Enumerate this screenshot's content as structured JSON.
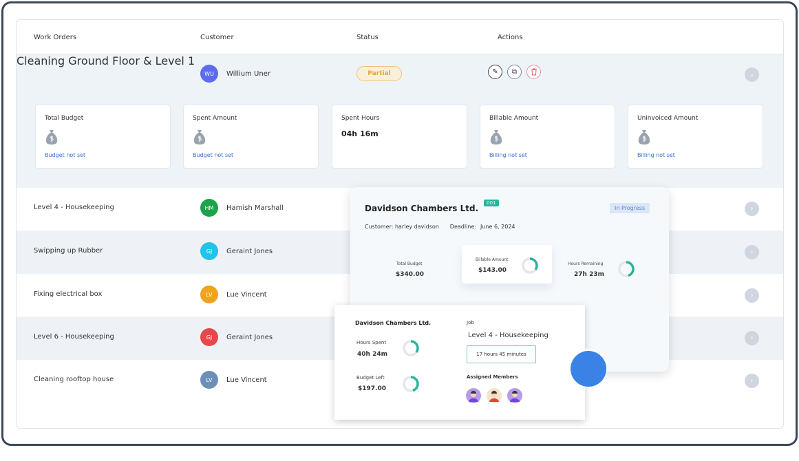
{
  "table": {
    "headers": [
      "Work Orders",
      "Customer",
      "Status",
      "Actions"
    ]
  },
  "rows": [
    {
      "work_order": "Cleaning Ground Floor & Level 1",
      "initials": "WU",
      "customer": "Willium Uner",
      "avatar_color": "#5b6cf0",
      "status": "Partial",
      "expanded": true
    },
    {
      "work_order": "Level 4 - Housekeeping",
      "initials": "HM",
      "customer": "Hamish Marshall",
      "avatar_color": "#1aa34a"
    },
    {
      "work_order": "Swipping up Rubber",
      "initials": "GJ",
      "customer": "Geraint Jones",
      "avatar_color": "#22c3ea"
    },
    {
      "work_order": "Fixing electrical box",
      "initials": "LV",
      "customer": "Lue Vincent",
      "avatar_color": "#f0a31c"
    },
    {
      "work_order": "Level 6 - Housekeeping",
      "initials": "GJ",
      "customer": "Geraint Jones",
      "avatar_color": "#e5484d"
    },
    {
      "work_order": "Cleaning rooftop house",
      "initials": "LV",
      "customer": "Lue Vincent",
      "avatar_color": "#6b8fb8"
    }
  ],
  "actions": {
    "edit": "pencil-icon",
    "copy": "copy-icon",
    "delete": "trash-icon"
  },
  "stats": [
    {
      "label": "Total Budget",
      "note": "Budget not set"
    },
    {
      "label": "Spent Amount",
      "note": "Budget not set"
    },
    {
      "label": "Spent Hours",
      "value": "04h 16m"
    },
    {
      "label": "Billable Amount",
      "note": "Billing not set"
    },
    {
      "label": "Uninvoiced Amount",
      "note": "Billing not set"
    }
  ],
  "popup_job": {
    "title": "Davidson Chambers Ltd.",
    "code": "001",
    "status": "In Progress",
    "customer": "Customer: harley davidson",
    "deadline_label": "Deadline:",
    "deadline": "June 6, 2024",
    "total_budget_label": "Total Budget",
    "total_budget": "$340.00",
    "billable_label": "Billable Amount",
    "billable": "$143.00",
    "billable_progress": 0.35,
    "hours_remaining_label": "Hours Remaining",
    "hours_remaining": "27h 23m",
    "hours_remaining_progress": 0.45
  },
  "popup_summary": {
    "company": "Davidson Chambers Ltd.",
    "hours_spent_label": "Hours Spent",
    "hours_spent": "40h 24m",
    "hours_spent_progress": 0.35,
    "budget_left_label": "Budget Left",
    "budget_left": "$197.00",
    "budget_left_progress": 0.45,
    "job_label": "Job",
    "job": "Level 4 - Housekeeping",
    "duration": "17 hours 45 minutes",
    "members_label": "Assigned Members"
  },
  "colors": {
    "accent": "#2bb39a",
    "brand_blue": "#3b82e6",
    "status_partial": "#e8a33a"
  }
}
